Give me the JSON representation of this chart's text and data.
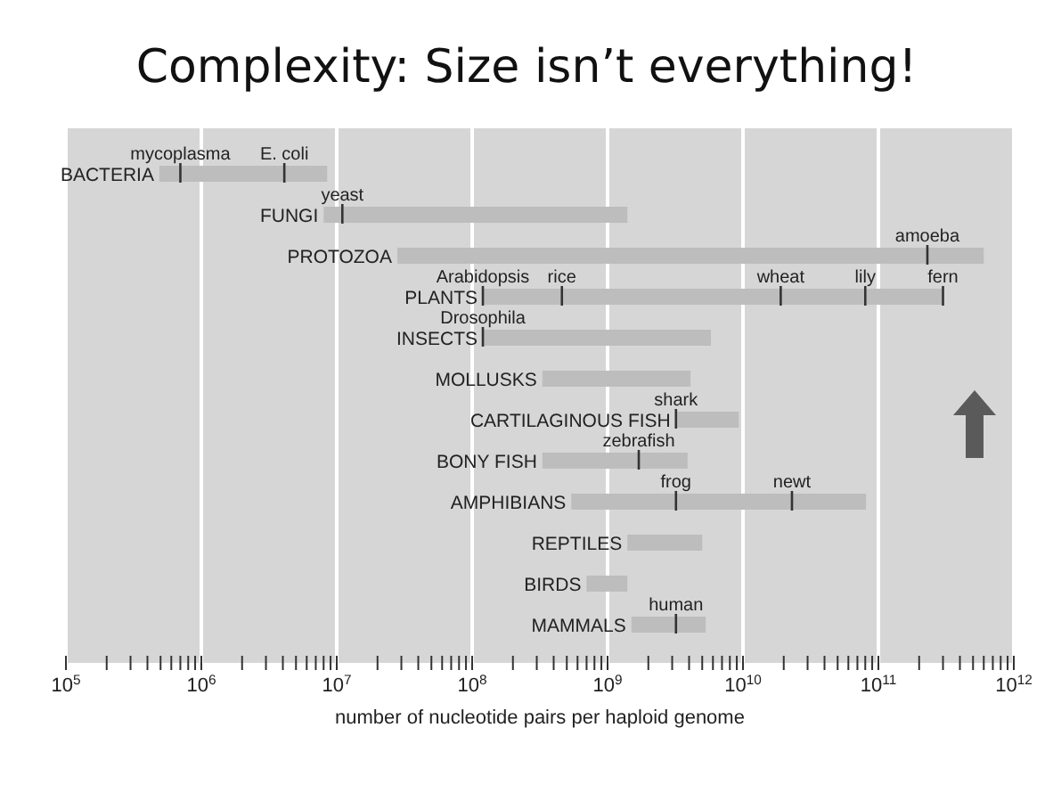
{
  "chart_data": {
    "type": "bar",
    "orientation": "horizontal",
    "title": "Complexity: Size isn’t everything!",
    "xlabel": "number of nucleotide pairs per haploid genome",
    "log": "x",
    "grid": "x",
    "legend": false,
    "categories": [
      "BACTERIA",
      "FUNGI",
      "PROTOZOA",
      "PLANTS",
      "INSECTS",
      "MOLLUSKS",
      "CARTILAGINOUS FISH",
      "BONY FISH",
      "AMPHIBIANS",
      "REPTILES",
      "BIRDS",
      "MAMMALS"
    ],
    "base": [
      490000,
      8000000,
      28000000,
      120000000,
      120000000,
      330000000,
      3200000000,
      330000000,
      540000000,
      1400000000,
      700000000,
      1500000000
    ],
    "values": [
      8010000,
      1392000000,
      599972000000,
      299880000000,
      5680000000,
      3770000000,
      6100000000,
      3570000000,
      80460000000,
      3600000000,
      700000000,
      3800000000
    ],
    "color": "#bdbdbd",
    "xlim": [
      100000,
      1000000000000
    ],
    "xticks": [
      {
        "value": 100000,
        "label": "10$^{5}$"
      },
      {
        "value": 200000,
        "label": null
      },
      {
        "value": 300000,
        "label": null
      },
      {
        "value": 400000,
        "label": null
      },
      {
        "value": 500000,
        "label": null
      },
      {
        "value": 600000,
        "label": null
      },
      {
        "value": 700000,
        "label": null
      },
      {
        "value": 800000,
        "label": null
      },
      {
        "value": 900000,
        "label": null
      },
      {
        "value": 1000000,
        "label": "10$^{6}$"
      },
      {
        "value": 2000000,
        "label": null
      },
      {
        "value": 3000000,
        "label": null
      },
      {
        "value": 4000000,
        "label": null
      },
      {
        "value": 5000000,
        "label": null
      },
      {
        "value": 6000000,
        "label": null
      },
      {
        "value": 7000000,
        "label": null
      },
      {
        "value": 8000000,
        "label": null
      },
      {
        "value": 9000000,
        "label": null
      },
      {
        "value": 10000000,
        "label": "10$^{7}$"
      },
      {
        "value": 20000000,
        "label": null
      },
      {
        "value": 30000000,
        "label": null
      },
      {
        "value": 40000000,
        "label": null
      },
      {
        "value": 50000000,
        "label": null
      },
      {
        "value": 60000000,
        "label": null
      },
      {
        "value": 70000000,
        "label": null
      },
      {
        "value": 80000000,
        "label": null
      },
      {
        "value": 90000000,
        "label": null
      },
      {
        "value": 100000000,
        "label": "10$^{8}$"
      },
      {
        "value": 200000000,
        "label": null
      },
      {
        "value": 300000000,
        "label": null
      },
      {
        "value": 400000000,
        "label": null
      },
      {
        "value": 500000000,
        "label": null
      },
      {
        "value": 600000000,
        "label": null
      },
      {
        "value": 700000000,
        "label": null
      },
      {
        "value": 800000000,
        "label": null
      },
      {
        "value": 900000000,
        "label": null
      },
      {
        "value": 1000000000,
        "label": "10$^{9}$"
      },
      {
        "value": 2000000000,
        "label": null
      },
      {
        "value": 3000000000,
        "label": null
      },
      {
        "value": 4000000000,
        "label": null
      },
      {
        "value": 5000000000,
        "label": null
      },
      {
        "value": 6000000000,
        "label": null
      },
      {
        "value": 7000000000,
        "label": null
      },
      {
        "value": 8000000000,
        "label": null
      },
      {
        "value": 9000000000,
        "label": null
      },
      {
        "value": 10000000000,
        "label": "10$^{10}$"
      },
      {
        "value": 20000000000,
        "label": null
      },
      {
        "value": 30000000000,
        "label": null
      },
      {
        "value": 40000000000,
        "label": null
      },
      {
        "value": 50000000000,
        "label": null
      },
      {
        "value": 60000000000,
        "label": null
      },
      {
        "value": 70000000000,
        "label": null
      },
      {
        "value": 80000000000,
        "label": null
      },
      {
        "value": 90000000000,
        "label": null
      },
      {
        "value": 100000000000,
        "label": "10$^{11}$"
      },
      {
        "value": 200000000000,
        "label": null
      },
      {
        "value": 300000000000,
        "label": null
      },
      {
        "value": 400000000000,
        "label": null
      },
      {
        "value": 500000000000,
        "label": null
      },
      {
        "value": 600000000000,
        "label": null
      },
      {
        "value": 700000000000,
        "label": null
      },
      {
        "value": 800000000000,
        "label": null
      },
      {
        "value": 900000000000,
        "label": null
      },
      {
        "value": 1000000000000,
        "label": "10$^{12}$"
      }
    ],
    "annotations": [
      {
        "text": "mycoplasma",
        "x": 700000,
        "y": "BACTERIA"
      },
      {
        "text": "E. coli",
        "x": 4100000,
        "y": "BACTERIA"
      },
      {
        "text": "yeast",
        "x": 11000000,
        "y": "FUNGI"
      },
      {
        "text": "amoeba",
        "x": 230000000000,
        "y": "PROTOZOA"
      },
      {
        "text": "Arabidopsis",
        "x": 120000000,
        "y": "PLANTS"
      },
      {
        "text": "rice",
        "x": 460000000,
        "y": "PLANTS"
      },
      {
        "text": "wheat",
        "x": 19000000000,
        "y": "PLANTS"
      },
      {
        "text": "lily",
        "x": 80000000000,
        "y": "PLANTS"
      },
      {
        "text": "fern",
        "x": 300000000000,
        "y": "PLANTS"
      },
      {
        "text": "Drosophila",
        "x": 120000000,
        "y": "INSECTS"
      },
      {
        "text": "shark",
        "x": 3200000000,
        "y": "CARTILAGINOUS FISH"
      },
      {
        "text": "zebrafish",
        "x": 1700000000,
        "y": "BONY FISH"
      },
      {
        "text": "frog",
        "x": 3200000000,
        "y": "AMPHIBIANS"
      },
      {
        "text": "newt",
        "x": 23000000000,
        "y": "AMPHIBIANS"
      },
      {
        "text": "human",
        "x": 3200000000,
        "y": "MAMMALS"
      }
    ]
  }
}
